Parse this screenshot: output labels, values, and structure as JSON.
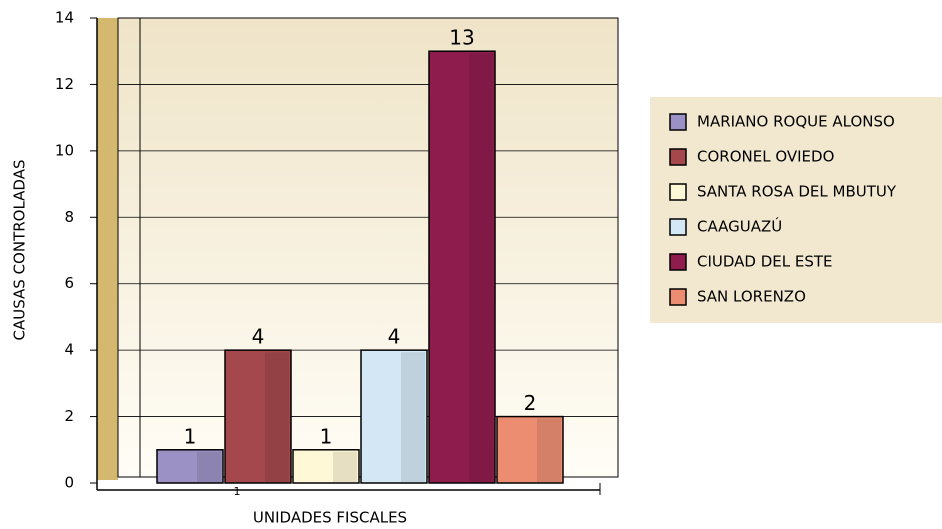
{
  "chart_data": {
    "type": "bar",
    "x_label": "UNIDADES FISCALES",
    "y_label": "CAUSAS CONTROLADAS",
    "categories": [
      "1"
    ],
    "series": [
      {
        "name": "MARIANO ROQUE ALONSO",
        "color": "#9b91c4",
        "values": [
          1
        ]
      },
      {
        "name": "CORONEL OVIEDO",
        "color": "#a4484e",
        "values": [
          4
        ]
      },
      {
        "name": "SANTA ROSA DEL MBUTUY",
        "color": "#fff8d6",
        "values": [
          1
        ]
      },
      {
        "name": "CAAGUAZÚ",
        "color": "#d3e8f4",
        "values": [
          4
        ]
      },
      {
        "name": "CIUDAD DEL ESTE",
        "color": "#8e1c4d",
        "values": [
          13
        ]
      },
      {
        "name": "SAN LORENZO",
        "color": "#ec8d72",
        "values": [
          2
        ]
      }
    ],
    "ylim": [
      0,
      14
    ],
    "yticks": [
      0,
      2,
      4,
      6,
      8,
      10,
      12,
      14
    ],
    "grid": true,
    "legend": "right"
  }
}
